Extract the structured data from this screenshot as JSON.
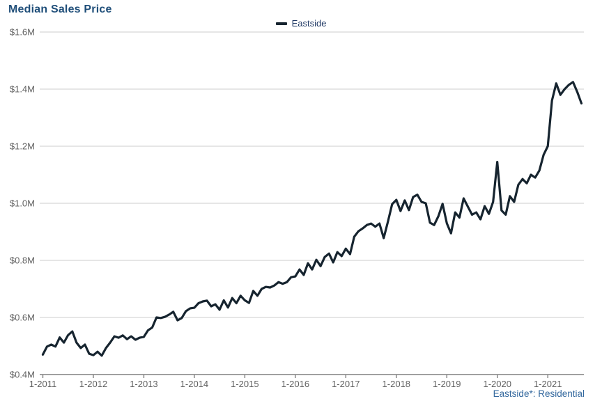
{
  "header": {
    "title": "Median Sales Price"
  },
  "legend": {
    "items": [
      {
        "label": "Eastside",
        "color": "#16242f"
      }
    ]
  },
  "footer": {
    "note": "Eastside*: Residential"
  },
  "colors": {
    "title": "#1f4e79",
    "series_line": "#16242f",
    "gridline": "#cccccc",
    "axis_line": "#808080",
    "axis_text": "#616161",
    "footer_text": "#33689e",
    "background": "#ffffff"
  },
  "chart_data": {
    "type": "line",
    "title": "Median Sales Price",
    "x_start": "1-2011",
    "x_frequency": "monthly",
    "x_tick_labels": [
      "1-2011",
      "1-2012",
      "1-2013",
      "1-2014",
      "1-2015",
      "1-2016",
      "1-2017",
      "1-2018",
      "1-2019",
      "1-2020",
      "1-2021"
    ],
    "y_tick_labels": [
      "$0.4M",
      "$0.6M",
      "$0.8M",
      "$1.0M",
      "$1.2M",
      "$1.4M",
      "$1.6M"
    ],
    "ylim": [
      0.4,
      1.6
    ],
    "y_step": 0.2,
    "y_unit": "$M (USD millions)",
    "grid": "horizontal",
    "legend_position": "top-center",
    "series": [
      {
        "name": "Eastside",
        "color": "#16242f",
        "values": [
          0.47,
          0.498,
          0.505,
          0.498,
          0.53,
          0.512,
          0.538,
          0.551,
          0.512,
          0.493,
          0.505,
          0.473,
          0.468,
          0.48,
          0.466,
          0.493,
          0.512,
          0.534,
          0.529,
          0.537,
          0.524,
          0.534,
          0.522,
          0.529,
          0.532,
          0.555,
          0.565,
          0.6,
          0.598,
          0.602,
          0.61,
          0.62,
          0.59,
          0.598,
          0.622,
          0.632,
          0.634,
          0.65,
          0.656,
          0.659,
          0.639,
          0.646,
          0.627,
          0.66,
          0.635,
          0.668,
          0.65,
          0.676,
          0.66,
          0.651,
          0.693,
          0.676,
          0.7,
          0.707,
          0.705,
          0.712,
          0.724,
          0.718,
          0.724,
          0.741,
          0.744,
          0.768,
          0.749,
          0.79,
          0.768,
          0.802,
          0.78,
          0.812,
          0.824,
          0.793,
          0.829,
          0.815,
          0.841,
          0.822,
          0.883,
          0.902,
          0.912,
          0.924,
          0.929,
          0.918,
          0.929,
          0.878,
          0.935,
          0.997,
          1.012,
          0.973,
          1.01,
          0.976,
          1.022,
          1.03,
          1.005,
          1.0,
          0.932,
          0.924,
          0.955,
          0.998,
          0.93,
          0.895,
          0.968,
          0.95,
          1.017,
          0.988,
          0.96,
          0.968,
          0.944,
          0.99,
          0.963,
          1.005,
          1.145,
          0.975,
          0.96,
          1.025,
          1.005,
          1.065,
          1.085,
          1.07,
          1.1,
          1.09,
          1.115,
          1.17,
          1.2,
          1.36,
          1.42,
          1.38,
          1.4,
          1.415,
          1.425,
          1.39,
          1.35
        ]
      }
    ]
  }
}
